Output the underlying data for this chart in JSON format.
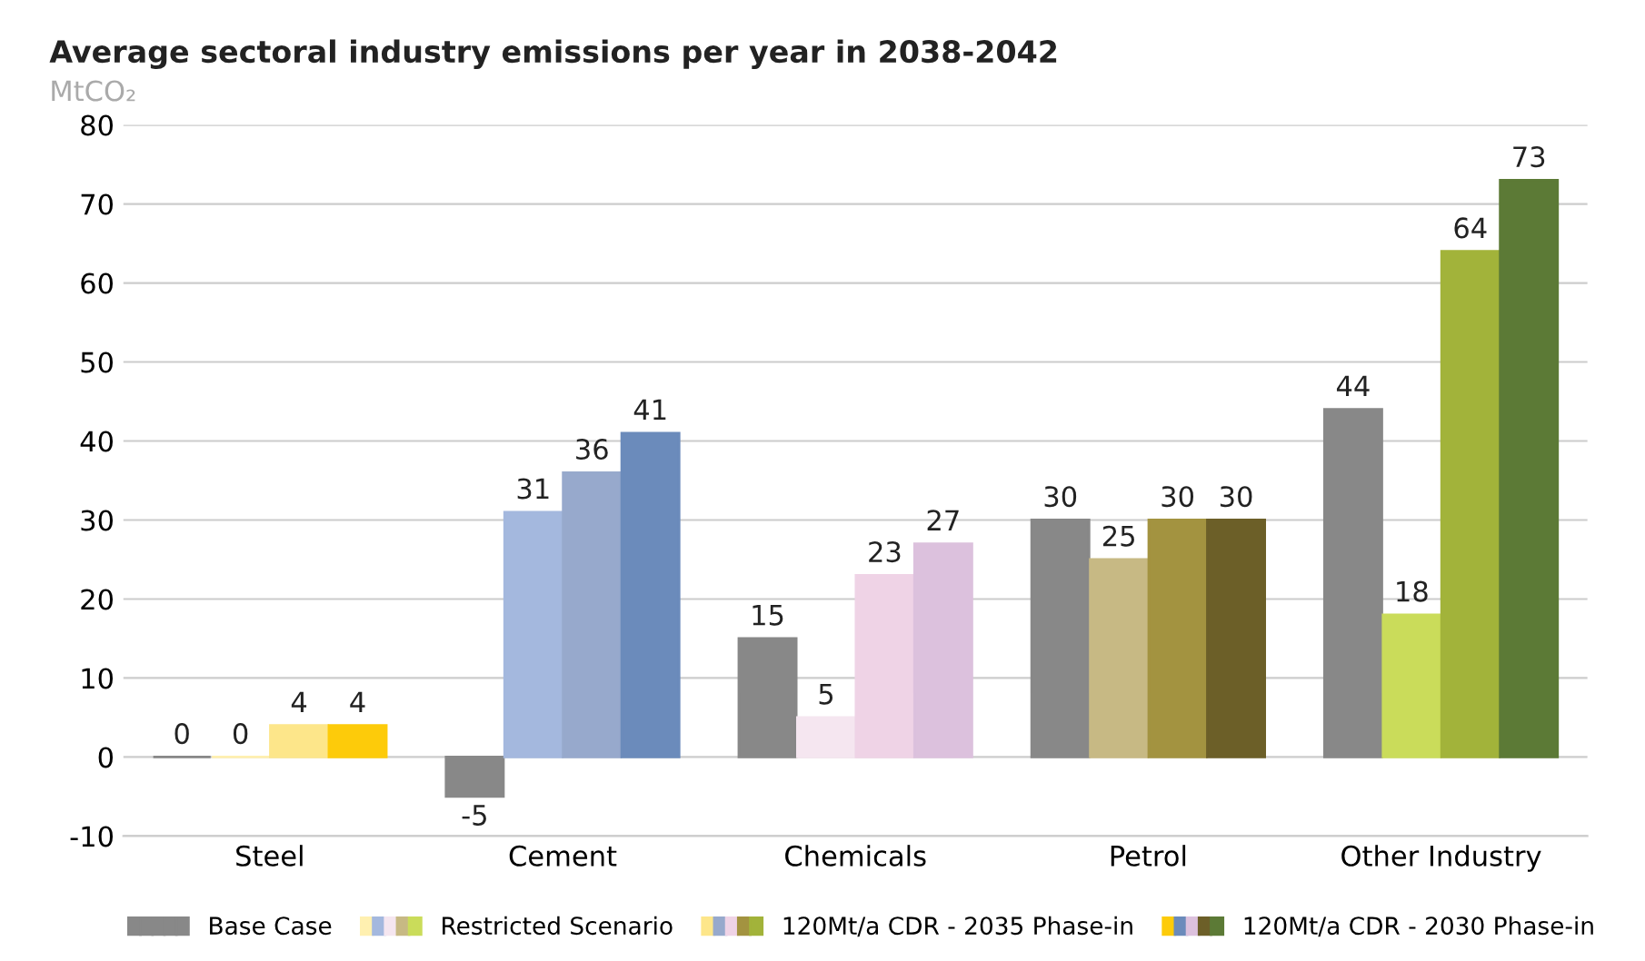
{
  "chart_data": {
    "type": "bar",
    "title": "Average sectoral industry emissions per year in 2038-2042",
    "ylabel": "MtCO₂",
    "categories": [
      "Steel",
      "Cement",
      "Chemicals",
      "Petrol",
      "Other Industry"
    ],
    "series": [
      {
        "name": "Base Case",
        "colors": [
          "#888888",
          "#888888",
          "#888888",
          "#888888",
          "#888888"
        ],
        "values": [
          0,
          -5,
          15,
          30,
          44
        ]
      },
      {
        "name": "Restricted Scenario",
        "colors": [
          "#fff0b0",
          "#a4b8de",
          "#f5e6f0",
          "#c7b984",
          "#cadc5a"
        ],
        "values": [
          0,
          31,
          5,
          25,
          18
        ]
      },
      {
        "name": "120Mt/a CDR - 2035 Phase-in",
        "colors": [
          "#fde68a",
          "#97a9cc",
          "#efd3e6",
          "#a39340",
          "#a2b33a"
        ],
        "values": [
          4,
          36,
          23,
          30,
          64
        ]
      },
      {
        "name": "120Mt/a CDR - 2030 Phase-in",
        "colors": [
          "#fdcb0a",
          "#6b8bbb",
          "#dcc1dd",
          "#6c5f28",
          "#5c7a36"
        ],
        "values": [
          4,
          41,
          27,
          30,
          73
        ]
      }
    ],
    "ylim": [
      -10,
      80
    ],
    "yticks": [
      -10,
      0,
      10,
      20,
      30,
      40,
      50,
      60,
      70,
      80
    ],
    "grid": "y",
    "legend": "bottom",
    "data_labels": true
  }
}
